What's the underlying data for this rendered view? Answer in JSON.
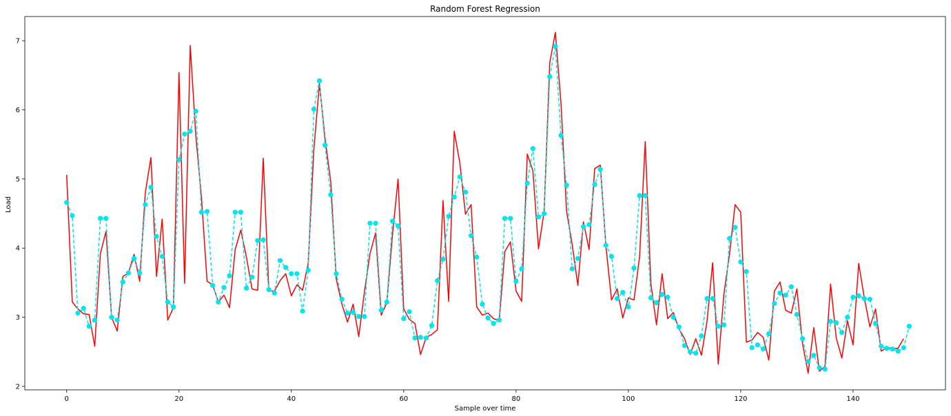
{
  "chart_data": {
    "type": "line",
    "title": "Random Forest Regression",
    "xlabel": "Sample over time",
    "ylabel": "Load",
    "xlim": [
      -7.45,
      156.45
    ],
    "ylim": [
      1.95,
      7.35
    ],
    "x_ticks": [
      0,
      20,
      40,
      60,
      80,
      100,
      120,
      140
    ],
    "y_ticks": [
      2,
      3,
      4,
      5,
      6,
      7
    ],
    "grid": false,
    "colors": {
      "actual": "#ff0000",
      "predicted": "#00e5ee"
    },
    "series": [
      {
        "style": "solid-red",
        "values": [
          5.06,
          3.22,
          3.12,
          3.05,
          3.04,
          2.58,
          3.92,
          4.24,
          3.0,
          2.8,
          3.59,
          3.64,
          3.91,
          3.52,
          4.8,
          5.31,
          3.59,
          4.42,
          2.96,
          3.14,
          6.54,
          3.49,
          6.93,
          5.62,
          4.73,
          3.52,
          3.47,
          3.22,
          3.32,
          3.14,
          3.98,
          4.26,
          3.87,
          3.41,
          3.39,
          5.3,
          3.38,
          3.38,
          3.53,
          3.63,
          3.31,
          3.47,
          3.39,
          3.78,
          5.42,
          6.38,
          5.58,
          4.97,
          3.55,
          3.19,
          2.93,
          3.19,
          2.72,
          3.36,
          3.92,
          4.22,
          3.03,
          3.21,
          4.19,
          5.0,
          3.12,
          2.97,
          2.91,
          2.46,
          2.71,
          2.75,
          2.82,
          4.69,
          3.23,
          5.69,
          5.23,
          4.49,
          4.63,
          3.15,
          3.03,
          3.06,
          2.98,
          2.95,
          3.95,
          4.09,
          3.38,
          3.23,
          5.36,
          5.12,
          3.99,
          4.53,
          6.68,
          7.12,
          6.1,
          4.53,
          4.05,
          3.46,
          4.38,
          3.98,
          5.15,
          5.2,
          4.03,
          3.25,
          3.41,
          2.99,
          3.28,
          3.25,
          3.88,
          5.54,
          3.49,
          2.89,
          3.63,
          2.98,
          3.07,
          2.83,
          2.69,
          2.46,
          2.69,
          2.45,
          2.94,
          3.79,
          2.32,
          3.33,
          3.91,
          4.63,
          4.52,
          2.64,
          2.67,
          2.78,
          2.71,
          2.38,
          3.38,
          3.51,
          3.1,
          3.06,
          3.41,
          2.62,
          2.19,
          2.85,
          2.22,
          2.29,
          3.48,
          2.7,
          2.41,
          2.95,
          2.6,
          3.78,
          3.28,
          2.86,
          3.12,
          2.51,
          2.56,
          2.55,
          2.55,
          2.69
        ]
      },
      {
        "style": "dashed-cyan-markers",
        "values": [
          4.66,
          4.47,
          3.06,
          3.13,
          2.87,
          2.96,
          4.43,
          4.43,
          3.0,
          2.96,
          3.51,
          3.64,
          3.85,
          3.64,
          4.63,
          4.88,
          4.17,
          3.88,
          3.22,
          3.15,
          5.28,
          5.65,
          5.69,
          5.98,
          4.52,
          4.53,
          3.46,
          3.22,
          3.43,
          3.6,
          4.52,
          4.52,
          3.42,
          3.58,
          4.11,
          4.12,
          3.4,
          3.35,
          3.82,
          3.72,
          3.63,
          3.63,
          3.09,
          3.68,
          6.01,
          6.42,
          5.49,
          4.77,
          3.63,
          3.26,
          3.06,
          3.07,
          3.01,
          3.01,
          4.36,
          4.36,
          3.1,
          3.22,
          4.39,
          4.32,
          2.98,
          3.08,
          2.7,
          2.71,
          2.7,
          2.88,
          3.53,
          3.84,
          4.46,
          4.74,
          5.03,
          4.81,
          4.18,
          3.87,
          3.19,
          2.99,
          2.91,
          2.96,
          4.43,
          4.43,
          3.52,
          3.7,
          4.94,
          5.44,
          4.45,
          4.5,
          6.48,
          6.92,
          5.63,
          4.91,
          3.7,
          3.85,
          4.31,
          4.34,
          4.92,
          5.14,
          4.04,
          3.88,
          3.27,
          3.36,
          3.15,
          3.71,
          4.76,
          4.76,
          3.28,
          3.21,
          3.33,
          3.29,
          3.0,
          2.86,
          2.59,
          2.5,
          2.48,
          2.73,
          3.27,
          3.27,
          2.87,
          2.89,
          4.14,
          4.3,
          3.8,
          3.66,
          2.56,
          2.6,
          2.54,
          2.76,
          3.2,
          3.35,
          3.32,
          3.44,
          3.04,
          2.69,
          2.36,
          2.45,
          2.27,
          2.25,
          2.94,
          2.92,
          2.78,
          3.0,
          3.29,
          3.31,
          3.27,
          3.26,
          2.91,
          2.58,
          2.55,
          2.54,
          2.51,
          2.56,
          2.87
        ]
      }
    ]
  }
}
